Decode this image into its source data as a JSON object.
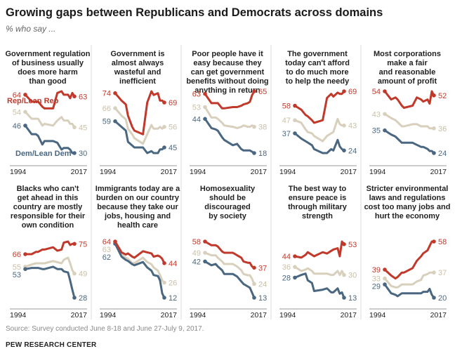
{
  "title": "Growing gaps between Republicans and Democrats across domains",
  "subtitle": "% who say ...",
  "source": "Source: Survey conducted June 8-18 and June 27-July 9, 2017.",
  "org": "PEW RESEARCH CENTER",
  "colors": {
    "rep": "#c0392b",
    "dem": "#4a6782",
    "total": "#d8d0bd"
  },
  "chart_data": {
    "type": "line",
    "legend": {
      "rep": "Rep/Lean Rep",
      "dem": "Dem/Lean Dem"
    },
    "x_years": [
      1994,
      1997,
      1999,
      2000,
      2002,
      2003,
      2007,
      2009,
      2011,
      2012,
      2014,
      2015,
      2016,
      2017
    ],
    "xlabels": [
      "1994",
      "2017"
    ],
    "panels": [
      {
        "title": [
          "Government regulation",
          "of business usually",
          "does more harm",
          "than good"
        ],
        "rep": [
          64,
          60,
          60,
          60,
          57,
          56,
          56,
          65,
          66,
          64,
          64,
          62,
          65,
          63
        ],
        "total": [
          54,
          50,
          50,
          50,
          46,
          47,
          46,
          49,
          51,
          49,
          49,
          47,
          47,
          45
        ],
        "dem": [
          46,
          41,
          41,
          40,
          35,
          37,
          37,
          36,
          32,
          33,
          33,
          32,
          30,
          30
        ],
        "end": {
          "rep": "63",
          "total": "45",
          "dem": "30"
        },
        "start": {
          "rep": "64",
          "total": "54",
          "dem": "46"
        }
      },
      {
        "title": [
          "Government is",
          "almost always",
          "wasteful and",
          "inefficient"
        ],
        "rep": [
          74,
          70,
          68,
          62,
          56,
          54,
          52,
          69,
          75,
          73,
          74,
          70,
          70,
          69
        ],
        "total": [
          66,
          62,
          60,
          55,
          52,
          50,
          47,
          52,
          57,
          55,
          55,
          56,
          55,
          56
        ],
        "dem": [
          59,
          56,
          54,
          48,
          46,
          45,
          45,
          42,
          43,
          42,
          42,
          44,
          44,
          45
        ],
        "end": {
          "rep": "69",
          "total": "56",
          "dem": "45"
        },
        "start": {
          "rep": "74",
          "total": "66",
          "dem": "59"
        }
      },
      {
        "title": [
          "Poor people have it",
          "easy because they",
          "can get government",
          "benefits without doing",
          "anything in return"
        ],
        "rep": [
          63,
          56,
          56,
          56,
          52,
          52,
          53,
          53,
          54,
          55,
          56,
          57,
          62,
          65
        ],
        "total": [
          53,
          45,
          45,
          44,
          41,
          39,
          38,
          37,
          38,
          39,
          38,
          38,
          39,
          38
        ],
        "dem": [
          44,
          37,
          36,
          35,
          30,
          28,
          24,
          25,
          21,
          20,
          20,
          20,
          19,
          18
        ],
        "end": {
          "rep": "65",
          "total": "38",
          "dem": "18"
        },
        "start": {
          "rep": "63",
          "total": "53",
          "dem": "44"
        }
      },
      {
        "title": [
          "The government",
          "today can't afford",
          "to do much more",
          "to help the needy"
        ],
        "rep": [
          58,
          55,
          51,
          50,
          47,
          45,
          47,
          64,
          67,
          65,
          68,
          67,
          67,
          69
        ],
        "total": [
          47,
          45,
          40,
          38,
          37,
          35,
          31,
          35,
          37,
          38,
          48,
          44,
          43,
          43
        ],
        "dem": [
          37,
          33,
          31,
          30,
          28,
          25,
          22,
          22,
          25,
          24,
          32,
          27,
          25,
          24
        ],
        "end": {
          "rep": "69",
          "total": "43",
          "dem": "24"
        },
        "start": {
          "rep": "58",
          "total": "47",
          "dem": "37"
        }
      },
      {
        "title": [
          "Most corporations",
          "make a fair",
          "and reasonable",
          "amount of profit"
        ],
        "rep": [
          54,
          50,
          51,
          50,
          47,
          46,
          47,
          51,
          50,
          49,
          50,
          48,
          54,
          52
        ],
        "total": [
          43,
          41,
          40,
          39,
          37,
          37,
          38,
          38,
          37,
          37,
          37,
          36,
          36,
          36
        ],
        "dem": [
          35,
          33,
          32,
          31,
          29,
          29,
          29,
          28,
          27,
          27,
          26,
          25,
          25,
          24
        ],
        "end": {
          "rep": "52",
          "total": "36",
          "dem": "24"
        },
        "start": {
          "rep": "54",
          "total": "43",
          "dem": "35"
        }
      },
      {
        "title": [
          "Blacks who can't",
          "get ahead in this",
          "country are mostly",
          "responsible for their",
          "own condition"
        ],
        "rep": [
          66,
          66,
          68,
          68,
          70,
          70,
          72,
          69,
          70,
          76,
          77,
          74,
          75,
          75
        ],
        "total": [
          55,
          57,
          58,
          58,
          58,
          58,
          60,
          59,
          58,
          61,
          63,
          58,
          52,
          49
        ],
        "dem": [
          53,
          54,
          54,
          54,
          53,
          53,
          55,
          53,
          53,
          51,
          50,
          43,
          35,
          28
        ],
        "end": {
          "rep": "75",
          "total": "49",
          "dem": "28"
        },
        "start": {
          "rep": "66",
          "total": "55",
          "dem": "53"
        }
      },
      {
        "title": [
          "Immigrants today are a",
          "burden on our country",
          "because they take our",
          "jobs, housing and",
          "health care"
        ],
        "rep": [
          64,
          54,
          52,
          53,
          50,
          49,
          55,
          54,
          53,
          50,
          51,
          50,
          48,
          44
        ],
        "total": [
          63,
          52,
          49,
          48,
          44,
          44,
          49,
          45,
          43,
          40,
          37,
          33,
          28,
          26
        ],
        "dem": [
          62,
          50,
          47,
          46,
          43,
          42,
          45,
          40,
          37,
          33,
          32,
          28,
          16,
          12
        ],
        "end": {
          "rep": "44",
          "total": "26",
          "dem": "12"
        },
        "start": {
          "rep": "64",
          "total": "63",
          "dem": "62"
        }
      },
      {
        "title": [
          "Homosexuality",
          "should be",
          "discouraged",
          "by society"
        ],
        "rep": [
          58,
          55,
          55,
          54,
          50,
          49,
          49,
          47,
          45,
          42,
          41,
          41,
          38,
          37
        ],
        "total": [
          49,
          47,
          47,
          45,
          42,
          40,
          40,
          38,
          35,
          32,
          31,
          31,
          28,
          24
        ],
        "dem": [
          42,
          39,
          40,
          38,
          35,
          32,
          32,
          30,
          26,
          24,
          22,
          21,
          17,
          13
        ],
        "end": {
          "rep": "37",
          "total": "24",
          "dem": "13"
        },
        "start": {
          "rep": "58",
          "total": "49",
          "dem": "42"
        }
      },
      {
        "title": [
          "The best way to",
          "ensure peace is",
          "through military",
          "strength"
        ],
        "rep": [
          44,
          43,
          45,
          47,
          45,
          44,
          47,
          46,
          48,
          49,
          50,
          44,
          55,
          53
        ],
        "total": [
          36,
          33,
          34,
          35,
          33,
          31,
          31,
          31,
          30,
          30,
          33,
          30,
          33,
          30
        ],
        "dem": [
          28,
          30,
          31,
          26,
          24,
          18,
          19,
          20,
          17,
          17,
          20,
          16,
          17,
          13
        ],
        "end": {
          "rep": "53",
          "total": "30",
          "dem": "13"
        },
        "start": {
          "rep": "44",
          "total": "36",
          "dem": "28"
        }
      },
      {
        "title": [
          "Stricter environmental",
          "laws and regulations",
          "cost too many jobs and",
          "hurt the economy"
        ],
        "rep": [
          39,
          35,
          33,
          34,
          37,
          37,
          40,
          45,
          48,
          50,
          52,
          55,
          58,
          58
        ],
        "total": [
          33,
          28,
          27,
          27,
          29,
          29,
          29,
          31,
          32,
          35,
          36,
          37,
          37,
          37
        ],
        "dem": [
          29,
          23,
          22,
          21,
          23,
          23,
          23,
          23,
          23,
          24,
          24,
          26,
          22,
          20
        ],
        "end": {
          "rep": "58",
          "total": "37",
          "dem": "20"
        },
        "start": {
          "rep": "39",
          "total": "33",
          "dem": "29"
        }
      }
    ]
  }
}
